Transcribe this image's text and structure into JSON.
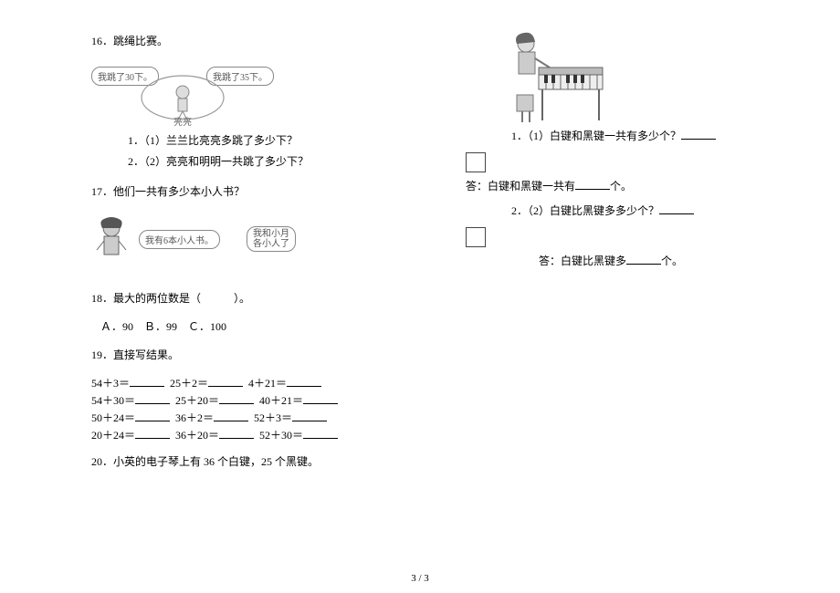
{
  "page_number": "3 / 3",
  "q16": {
    "head": "16．跳绳比赛。",
    "bubble_left": "我跳了30下。",
    "bubble_right": "我跳了35下。",
    "caption": "亮亮",
    "sub1": "1．（1）兰兰比亮亮多跳了多少下？",
    "sub2": "2．（2）亮亮和明明一共跳了多少下？"
  },
  "q17": {
    "head": "17．他们一共有多少本小人书？",
    "bubble_left": "我有6本小人书。",
    "bubble_right_l1": "我和小月",
    "bubble_right_l2": "各小人了"
  },
  "q18": {
    "head": "18．最大的两位数是（　　　）。",
    "opts": "Ａ．90　Ｂ．99　Ｃ．100"
  },
  "q19": {
    "head": "19．直接写结果。",
    "rows": [
      [
        "54＋3＝",
        "25＋2＝",
        "4＋21＝"
      ],
      [
        "54＋30＝",
        "25＋20＝",
        "40＋21＝"
      ],
      [
        "50＋24＝",
        "36＋2＝",
        "52＋3＝"
      ],
      [
        "20＋24＝",
        "36＋20＝",
        "52＋30＝"
      ]
    ]
  },
  "q20": {
    "head": "20．小英的电子琴上有 36 个白键，25 个黑键。",
    "sub1": "1．（1）白键和黑键一共有多少个？",
    "ans1_pre": "答：白键和黑键一共有",
    "ans1_suf": "个。",
    "sub2": "2．（2）白键比黑键多多少个？",
    "ans2_pre": "答：白键比黑键多",
    "ans2_suf": "个。"
  }
}
